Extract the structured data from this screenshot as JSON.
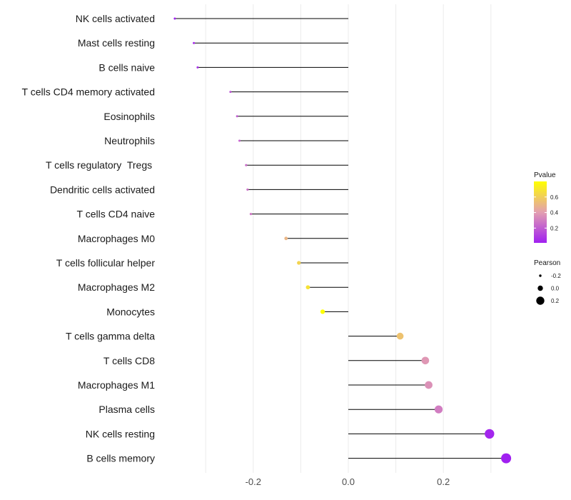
{
  "chart_data": {
    "type": "lollipop",
    "title": "",
    "xlabel": "",
    "ylabel": "",
    "xlim": [
      -0.37,
      0.35
    ],
    "xticks": [
      -0.2,
      0.0,
      0.2
    ],
    "xtick_labels": [
      "-0.2",
      "0.0",
      "0.2"
    ],
    "grid": true,
    "baseline": 0.0,
    "categories": [
      "NK cells activated",
      "Mast cells resting",
      "B cells naive",
      "T cells CD4 memory activated",
      "Eosinophils",
      "Neutrophils",
      "T cells regulatory  Tregs ",
      "Dendritic cells activated",
      "T cells CD4 naive",
      "Macrophages M0",
      "T cells follicular helper",
      "Macrophages M2",
      "Monocytes",
      "T cells gamma delta",
      "T cells CD8",
      "Macrophages M1",
      "Plasma cells",
      "NK cells resting",
      "B cells memory"
    ],
    "pearson": [
      -0.365,
      -0.325,
      -0.317,
      -0.248,
      -0.234,
      -0.229,
      -0.215,
      -0.212,
      -0.205,
      -0.131,
      -0.104,
      -0.085,
      -0.054,
      0.109,
      0.162,
      0.169,
      0.19,
      0.297,
      0.332
    ],
    "pvalue": [
      0.01,
      0.05,
      0.06,
      0.17,
      0.2,
      0.22,
      0.25,
      0.26,
      0.28,
      0.5,
      0.62,
      0.68,
      0.8,
      0.55,
      0.38,
      0.36,
      0.3,
      0.03,
      0.01
    ],
    "legend_pvalue": {
      "title": "Pvalue",
      "range": [
        0.01,
        0.8
      ],
      "ticks": [
        0.2,
        0.4,
        0.6
      ],
      "tick_labels": [
        "0.2",
        "0.4",
        "0.6"
      ],
      "low_color": "#a020f0",
      "mid_color": "#e39fb0",
      "high_color": "#ffff00"
    },
    "legend_pearson": {
      "title": "Pearson",
      "values": [
        -0.2,
        0.0,
        0.2
      ],
      "labels": [
        "-0.2",
        "0.0",
        "0.2"
      ]
    }
  }
}
